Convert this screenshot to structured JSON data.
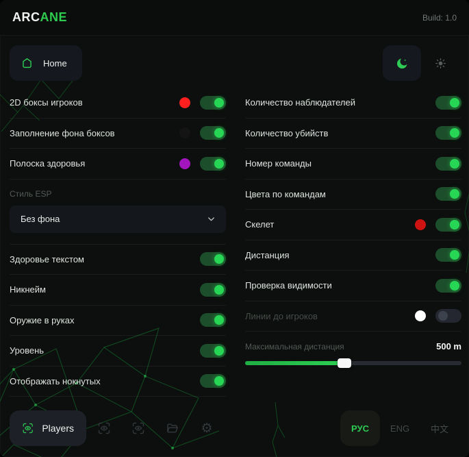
{
  "header": {
    "brand_primary": "ARC",
    "brand_accent": "ANE",
    "build": "Build: 1.0"
  },
  "nav": {
    "home_label": "Home"
  },
  "theme": {
    "dark_icon": "moon",
    "light_icon": "sun",
    "active": "dark"
  },
  "left_column": {
    "toggles_top": [
      {
        "label": "2D боксы игроков",
        "swatch": "#ff1f1f",
        "on": true
      },
      {
        "label": "Заполнение фона боксов",
        "swatch": "#141414",
        "on": true
      },
      {
        "label": "Полоска здоровья",
        "swatch": "#a316bd",
        "on": true
      }
    ],
    "dropdown": {
      "label": "Стиль ESP",
      "value": "Без фона"
    },
    "toggles_bottom": [
      {
        "label": "Здоровье текстом",
        "on": true
      },
      {
        "label": "Никнейм",
        "on": true
      },
      {
        "label": "Оружие в руках",
        "on": true
      },
      {
        "label": "Уровень",
        "on": true
      },
      {
        "label": "Отображать нокнутых",
        "on": true
      }
    ]
  },
  "right_column": {
    "toggles": [
      {
        "label": "Количество наблюдателей",
        "on": true
      },
      {
        "label": "Количество убийств",
        "on": true
      },
      {
        "label": "Номер команды",
        "on": true
      },
      {
        "label": "Цвета по командам",
        "on": true
      },
      {
        "label": "Скелет",
        "swatch": "#cf1212",
        "on": true
      },
      {
        "label": "Дистанция",
        "on": true
      },
      {
        "label": "Проверка видимости",
        "on": true
      },
      {
        "label": "Линии до игроков",
        "swatch": "#ffffff",
        "on": false,
        "disabled": true
      }
    ],
    "slider": {
      "label": "Максимальная дистанция",
      "value": "500 m",
      "percent": 46
    }
  },
  "footer": {
    "tabs": [
      {
        "icon": "eye-scan",
        "label": "Players",
        "active": true
      },
      {
        "icon": "eye-scan",
        "active": false
      },
      {
        "icon": "eye-scan",
        "active": false
      },
      {
        "icon": "folder",
        "active": false
      },
      {
        "icon": "gear",
        "active": false
      }
    ],
    "languages": [
      {
        "label": "РУС",
        "active": true
      },
      {
        "label": "ENG",
        "active": false
      },
      {
        "label": "中文",
        "active": false
      }
    ]
  },
  "colors": {
    "accent": "#2ecc55",
    "toggle_on_track": "#1d4e2b",
    "toggle_on_knob": "#27d654",
    "toggle_off_track": "#24272f",
    "background": "#0c0f0d"
  }
}
